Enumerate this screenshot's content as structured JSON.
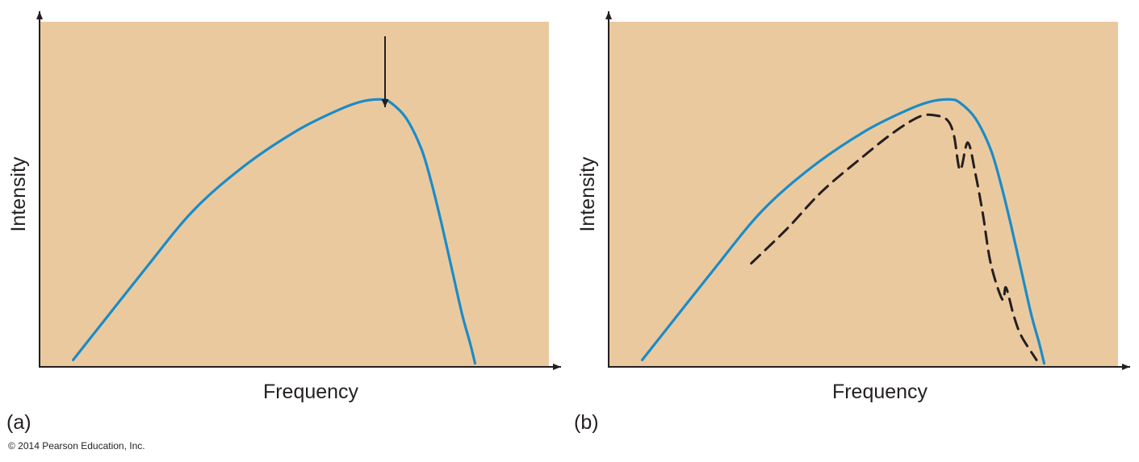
{
  "colors": {
    "plot_background": "#ebc99e",
    "curve": "#1a8cc8",
    "dashed_curve": "#231f20",
    "axis": "#231f20"
  },
  "copyright": "© 2014 Pearson Education, Inc.",
  "chart_data": [
    {
      "panel_label": "(a)",
      "type": "line",
      "xlabel": "Frequency",
      "ylabel": "Intensity",
      "xlim": [
        0,
        100
      ],
      "ylim": [
        0,
        100
      ],
      "ticks": false,
      "grid": false,
      "annotations": [
        {
          "type": "arrow-down",
          "target_x": 67.6,
          "target_y": 75
        }
      ],
      "series": [
        {
          "style": "solid",
          "color": "#1a8cc8",
          "x": [
            6.6,
            20,
            30,
            40,
            50,
            58,
            63,
            67,
            69,
            72,
            75,
            77,
            79,
            81,
            83,
            84.5,
            85.5
          ],
          "y": [
            2,
            27,
            45,
            58,
            68,
            74,
            76.8,
            77.5,
            76.5,
            72,
            63,
            53,
            41,
            28,
            15,
            7,
            1
          ]
        }
      ]
    },
    {
      "panel_label": "(b)",
      "type": "line",
      "xlabel": "Frequency",
      "ylabel": "Intensity",
      "xlim": [
        0,
        100
      ],
      "ylim": [
        0,
        100
      ],
      "ticks": false,
      "grid": false,
      "series": [
        {
          "style": "solid",
          "color": "#1a8cc8",
          "x": [
            6.6,
            20,
            30,
            40,
            50,
            58,
            63,
            67,
            69,
            72,
            75,
            77,
            79,
            81,
            83,
            84.5,
            85.5
          ],
          "y": [
            2,
            27,
            45,
            58,
            68,
            74,
            76.8,
            77.5,
            76.5,
            72,
            63,
            53,
            41,
            28,
            15,
            7,
            1
          ]
        },
        {
          "style": "dashed",
          "color": "#231f20",
          "x": [
            28,
            35,
            42,
            50,
            56,
            61,
            64,
            66.5,
            67.8,
            69,
            70.5,
            72,
            73.5,
            75,
            77.3,
            78,
            79.5,
            81,
            84
          ],
          "y": [
            30,
            40,
            51,
            61,
            68,
            72.5,
            72.9,
            71.5,
            67,
            57,
            65,
            56,
            44,
            30,
            19.5,
            23,
            15,
            9,
            2
          ]
        }
      ]
    }
  ]
}
